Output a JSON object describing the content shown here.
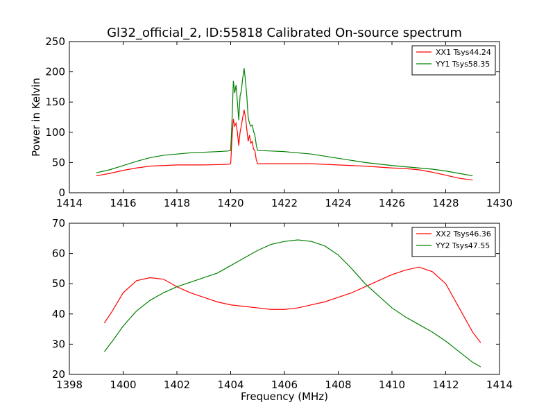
{
  "figure": {
    "title": "Gl32_official_2, ID:55818 Calibrated On-source spectrum"
  },
  "chart_data": [
    {
      "type": "line",
      "title": "Gl32_official_2, ID:55818 Calibrated On-source spectrum",
      "xlabel": "",
      "ylabel": "Power in Kelvin",
      "xlim": [
        1414,
        1430
      ],
      "ylim": [
        0,
        250
      ],
      "xticks": [
        1414,
        1416,
        1418,
        1420,
        1422,
        1424,
        1426,
        1428,
        1430
      ],
      "yticks": [
        0,
        50,
        100,
        150,
        200,
        250
      ],
      "grid": false,
      "legend_position": "top-right",
      "series": [
        {
          "name": "XX1 Tsys44.24",
          "color": "#ff0000",
          "points": [
            [
              1415.0,
              28
            ],
            [
              1415.5,
              32
            ],
            [
              1416.0,
              37
            ],
            [
              1416.5,
              41
            ],
            [
              1417.0,
              44
            ],
            [
              1417.5,
              45
            ],
            [
              1418.0,
              46
            ],
            [
              1418.5,
              46
            ],
            [
              1419.0,
              46
            ],
            [
              1419.5,
              46.5
            ],
            [
              1419.9,
              47
            ],
            [
              1420.0,
              48
            ],
            [
              1420.05,
              90
            ],
            [
              1420.1,
              122
            ],
            [
              1420.15,
              110
            ],
            [
              1420.2,
              115
            ],
            [
              1420.25,
              100
            ],
            [
              1420.3,
              78
            ],
            [
              1420.35,
              100
            ],
            [
              1420.4,
              112
            ],
            [
              1420.45,
              125
            ],
            [
              1420.5,
              137
            ],
            [
              1420.55,
              125
            ],
            [
              1420.6,
              105
            ],
            [
              1420.65,
              85
            ],
            [
              1420.7,
              95
            ],
            [
              1420.75,
              82
            ],
            [
              1420.8,
              85
            ],
            [
              1420.85,
              72
            ],
            [
              1420.9,
              70
            ],
            [
              1420.95,
              55
            ],
            [
              1421.0,
              48
            ],
            [
              1421.5,
              48
            ],
            [
              1422.0,
              48
            ],
            [
              1423.0,
              48
            ],
            [
              1424.0,
              46
            ],
            [
              1425.0,
              44
            ],
            [
              1426.0,
              41
            ],
            [
              1426.5,
              40
            ],
            [
              1427.0,
              38
            ],
            [
              1427.5,
              34
            ],
            [
              1428.0,
              29
            ],
            [
              1428.5,
              24
            ],
            [
              1429.0,
              21
            ]
          ]
        },
        {
          "name": "YY1 Tsys58.35",
          "color": "#008000",
          "points": [
            [
              1415.0,
              33
            ],
            [
              1415.5,
              38
            ],
            [
              1416.0,
              45
            ],
            [
              1416.5,
              52
            ],
            [
              1417.0,
              58
            ],
            [
              1417.5,
              62
            ],
            [
              1418.0,
              64
            ],
            [
              1418.5,
              66
            ],
            [
              1419.0,
              67
            ],
            [
              1419.5,
              68
            ],
            [
              1419.9,
              69
            ],
            [
              1420.0,
              70
            ],
            [
              1420.05,
              120
            ],
            [
              1420.1,
              185
            ],
            [
              1420.15,
              165
            ],
            [
              1420.2,
              178
            ],
            [
              1420.25,
              150
            ],
            [
              1420.3,
              120
            ],
            [
              1420.35,
              160
            ],
            [
              1420.4,
              170
            ],
            [
              1420.45,
              190
            ],
            [
              1420.5,
              206
            ],
            [
              1420.55,
              185
            ],
            [
              1420.6,
              160
            ],
            [
              1420.65,
              125
            ],
            [
              1420.7,
              115
            ],
            [
              1420.75,
              110
            ],
            [
              1420.8,
              112
            ],
            [
              1420.85,
              102
            ],
            [
              1420.9,
              95
            ],
            [
              1420.95,
              80
            ],
            [
              1421.0,
              70
            ],
            [
              1421.5,
              69
            ],
            [
              1422.0,
              68
            ],
            [
              1423.0,
              64
            ],
            [
              1424.0,
              57
            ],
            [
              1425.0,
              50
            ],
            [
              1426.0,
              45
            ],
            [
              1426.5,
              43
            ],
            [
              1427.0,
              41
            ],
            [
              1427.5,
              39
            ],
            [
              1428.0,
              36
            ],
            [
              1428.5,
              32
            ],
            [
              1429.0,
              28
            ]
          ]
        }
      ]
    },
    {
      "type": "line",
      "title": "",
      "xlabel": "Frequency (MHz)",
      "ylabel": "",
      "xlim": [
        1398,
        1414
      ],
      "ylim": [
        20,
        70
      ],
      "xticks": [
        1398,
        1400,
        1402,
        1404,
        1406,
        1408,
        1410,
        1412,
        1414
      ],
      "yticks": [
        20,
        30,
        40,
        50,
        60,
        70
      ],
      "grid": false,
      "legend_position": "top-right",
      "series": [
        {
          "name": "XX2 Tsys46.36",
          "color": "#ff0000",
          "points": [
            [
              1399.3,
              37
            ],
            [
              1399.6,
              41
            ],
            [
              1400.0,
              47
            ],
            [
              1400.5,
              51
            ],
            [
              1401.0,
              52
            ],
            [
              1401.5,
              51.5
            ],
            [
              1402.0,
              49
            ],
            [
              1402.5,
              47
            ],
            [
              1403.0,
              45.5
            ],
            [
              1403.5,
              44
            ],
            [
              1404.0,
              43
            ],
            [
              1404.5,
              42.5
            ],
            [
              1405.0,
              42
            ],
            [
              1405.5,
              41.5
            ],
            [
              1406.0,
              41.5
            ],
            [
              1406.5,
              42
            ],
            [
              1407.0,
              43
            ],
            [
              1407.5,
              44
            ],
            [
              1408.0,
              45.5
            ],
            [
              1408.5,
              47
            ],
            [
              1409.0,
              49
            ],
            [
              1409.5,
              51
            ],
            [
              1410.0,
              53
            ],
            [
              1410.5,
              54.5
            ],
            [
              1411.0,
              55.5
            ],
            [
              1411.5,
              54
            ],
            [
              1412.0,
              50
            ],
            [
              1412.5,
              42
            ],
            [
              1413.0,
              34
            ],
            [
              1413.3,
              30.5
            ]
          ]
        },
        {
          "name": "YY2 Tsys47.55",
          "color": "#008000",
          "points": [
            [
              1399.3,
              27.5
            ],
            [
              1399.6,
              31
            ],
            [
              1400.0,
              36
            ],
            [
              1400.5,
              41
            ],
            [
              1401.0,
              44.5
            ],
            [
              1401.5,
              47
            ],
            [
              1402.0,
              49
            ],
            [
              1402.5,
              50.5
            ],
            [
              1403.0,
              52
            ],
            [
              1403.5,
              53.5
            ],
            [
              1404.0,
              56
            ],
            [
              1404.5,
              58.5
            ],
            [
              1405.0,
              61
            ],
            [
              1405.5,
              63
            ],
            [
              1406.0,
              64
            ],
            [
              1406.5,
              64.5
            ],
            [
              1407.0,
              64
            ],
            [
              1407.5,
              62.5
            ],
            [
              1408.0,
              59.5
            ],
            [
              1408.5,
              55
            ],
            [
              1409.0,
              50
            ],
            [
              1409.5,
              46
            ],
            [
              1410.0,
              42
            ],
            [
              1410.5,
              39
            ],
            [
              1411.0,
              36.5
            ],
            [
              1411.5,
              34
            ],
            [
              1412.0,
              31
            ],
            [
              1412.5,
              27.5
            ],
            [
              1413.0,
              24
            ],
            [
              1413.3,
              22.5
            ]
          ]
        }
      ]
    }
  ]
}
